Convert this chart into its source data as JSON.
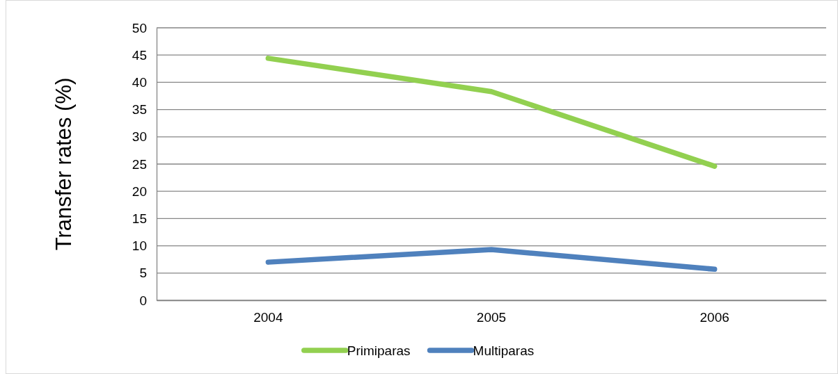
{
  "chart_data": {
    "type": "line",
    "ylabel": "Transfer rates (%)",
    "categories": [
      "2004",
      "2005",
      "2006"
    ],
    "series": [
      {
        "name": "Primiparas",
        "color": "#92d050",
        "values": [
          44.4,
          38.3,
          24.6
        ]
      },
      {
        "name": "Multiparas",
        "color": "#4f81bd",
        "values": [
          7.0,
          9.3,
          5.7
        ]
      }
    ],
    "ylim": [
      0,
      50
    ],
    "yticks": [
      0,
      5,
      10,
      15,
      20,
      25,
      30,
      35,
      40,
      45,
      50
    ],
    "grid": "y",
    "legend": "bottom",
    "marker": "none",
    "line_style": "solid"
  }
}
